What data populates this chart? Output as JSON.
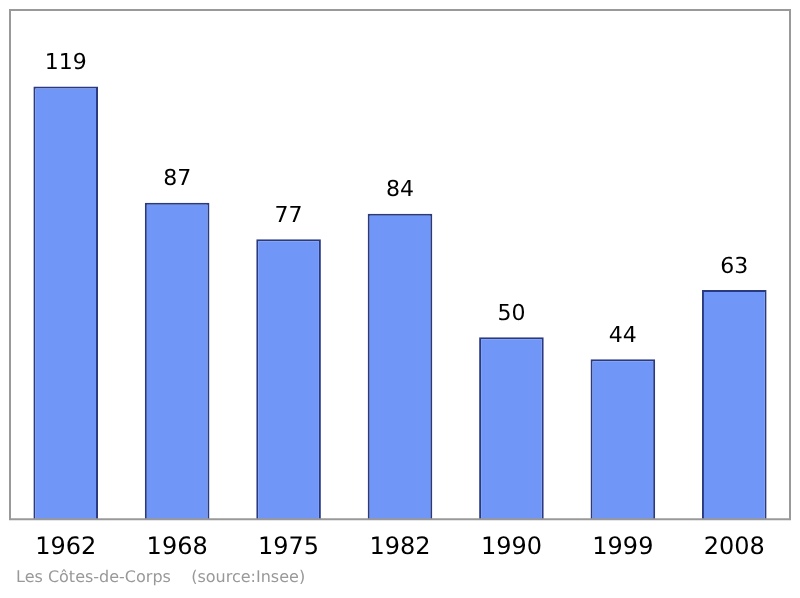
{
  "chart_data": {
    "type": "bar",
    "categories": [
      "1962",
      "1968",
      "1975",
      "1982",
      "1990",
      "1999",
      "2008"
    ],
    "values": [
      119,
      87,
      77,
      84,
      50,
      44,
      63
    ],
    "color": "#7096f8",
    "data_labels": true,
    "grid": false,
    "legend": false,
    "annotations": [
      "Les Côtes-de-Corps    (source:Insee)"
    ]
  }
}
